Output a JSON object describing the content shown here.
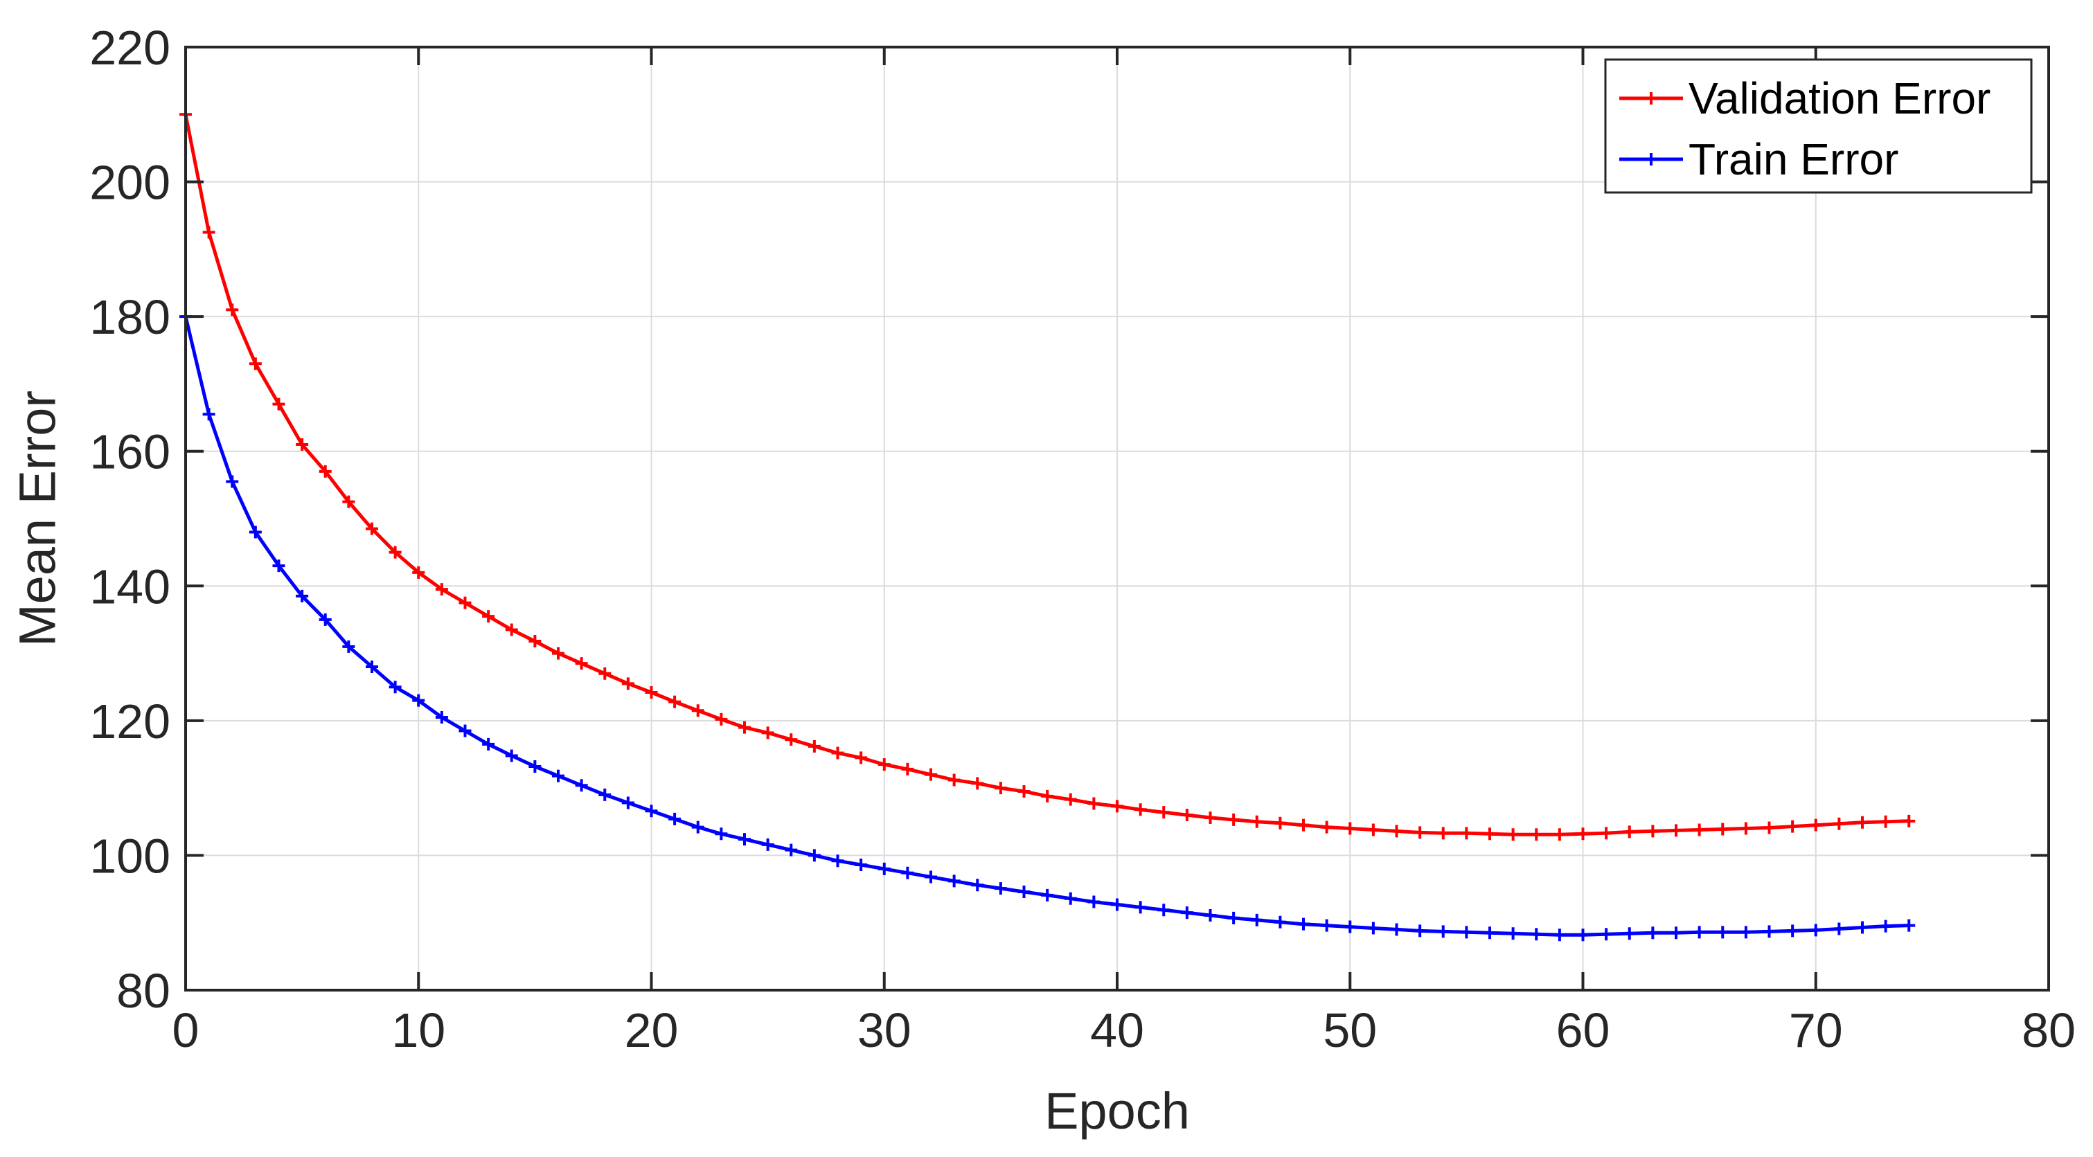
{
  "chart_data": {
    "type": "line",
    "xlabel": "Epoch",
    "ylabel": "Mean Error",
    "xlim": [
      0,
      80
    ],
    "ylim": [
      80,
      220
    ],
    "xticks": [
      0,
      10,
      20,
      30,
      40,
      50,
      60,
      70,
      80
    ],
    "yticks": [
      80,
      100,
      120,
      140,
      160,
      180,
      200,
      220
    ],
    "grid": true,
    "legend_position": "top-right",
    "series": [
      {
        "name": "Validation Error",
        "color": "#ff0000",
        "marker": "plus",
        "x": [
          0,
          1,
          2,
          3,
          4,
          5,
          6,
          7,
          8,
          9,
          10,
          11,
          12,
          13,
          14,
          15,
          16,
          17,
          18,
          19,
          20,
          21,
          22,
          23,
          24,
          25,
          26,
          27,
          28,
          29,
          30,
          31,
          32,
          33,
          34,
          35,
          36,
          37,
          38,
          39,
          40,
          41,
          42,
          43,
          44,
          45,
          46,
          47,
          48,
          49,
          50,
          51,
          52,
          53,
          54,
          55,
          56,
          57,
          58,
          59,
          60,
          61,
          62,
          63,
          64,
          65,
          66,
          67,
          68,
          69,
          70,
          71,
          72,
          73,
          74
        ],
        "y": [
          210,
          192.5,
          181,
          173,
          167,
          161,
          157,
          152.5,
          148.5,
          145,
          142,
          139.5,
          137.5,
          135.5,
          133.5,
          131.8,
          130,
          128.5,
          127,
          125.5,
          124.2,
          122.8,
          121.5,
          120.2,
          119,
          118.2,
          117.2,
          116.2,
          115.2,
          114.5,
          113.5,
          112.8,
          112,
          111.2,
          110.7,
          110,
          109.5,
          108.8,
          108.3,
          107.7,
          107.3,
          106.8,
          106.4,
          106,
          105.6,
          105.3,
          105,
          104.8,
          104.5,
          104.2,
          104,
          103.8,
          103.6,
          103.4,
          103.3,
          103.3,
          103.2,
          103.1,
          103.1,
          103.1,
          103.2,
          103.3,
          103.5,
          103.6,
          103.7,
          103.8,
          103.9,
          104,
          104.1,
          104.3,
          104.5,
          104.7,
          104.9,
          105,
          105.1
        ]
      },
      {
        "name": "Train Error",
        "color": "#0000ff",
        "marker": "plus",
        "x": [
          0,
          1,
          2,
          3,
          4,
          5,
          6,
          7,
          8,
          9,
          10,
          11,
          12,
          13,
          14,
          15,
          16,
          17,
          18,
          19,
          20,
          21,
          22,
          23,
          24,
          25,
          26,
          27,
          28,
          29,
          30,
          31,
          32,
          33,
          34,
          35,
          36,
          37,
          38,
          39,
          40,
          41,
          42,
          43,
          44,
          45,
          46,
          47,
          48,
          49,
          50,
          51,
          52,
          53,
          54,
          55,
          56,
          57,
          58,
          59,
          60,
          61,
          62,
          63,
          64,
          65,
          66,
          67,
          68,
          69,
          70,
          71,
          72,
          73,
          74
        ],
        "y": [
          180,
          165.5,
          155.5,
          148,
          143,
          138.5,
          135,
          131,
          128,
          125,
          123,
          120.5,
          118.5,
          116.5,
          114.8,
          113.2,
          111.8,
          110.4,
          109,
          107.8,
          106.6,
          105.4,
          104.2,
          103.2,
          102.4,
          101.6,
          100.8,
          100,
          99.2,
          98.6,
          98,
          97.4,
          96.8,
          96.2,
          95.6,
          95.1,
          94.6,
          94.1,
          93.6,
          93.1,
          92.7,
          92.3,
          91.9,
          91.5,
          91.1,
          90.7,
          90.4,
          90.1,
          89.8,
          89.6,
          89.4,
          89.2,
          89,
          88.8,
          88.7,
          88.6,
          88.5,
          88.4,
          88.3,
          88.2,
          88.2,
          88.3,
          88.4,
          88.5,
          88.5,
          88.6,
          88.6,
          88.6,
          88.7,
          88.8,
          88.9,
          89.1,
          89.3,
          89.5,
          89.6
        ]
      }
    ]
  }
}
